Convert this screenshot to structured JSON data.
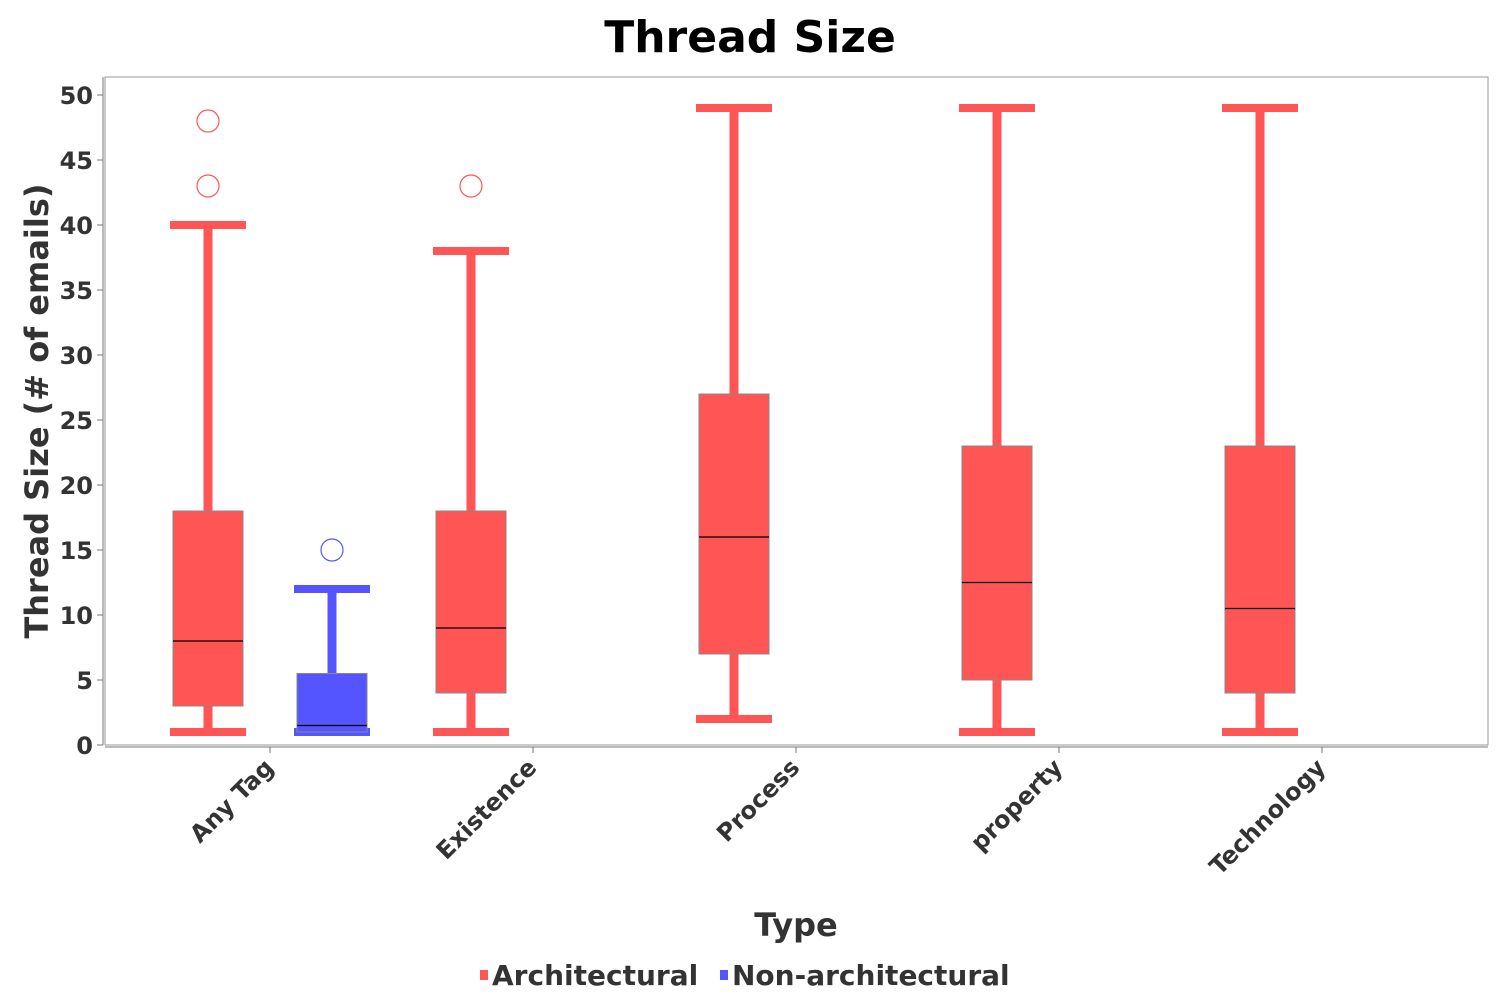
{
  "chart_data": {
    "type": "box",
    "title": "Thread Size",
    "xlabel": "Type",
    "ylabel": "Thread Size (# of emails)",
    "ylim": [
      0,
      51
    ],
    "yticks": [
      0,
      5,
      10,
      15,
      20,
      25,
      30,
      35,
      40,
      45,
      50
    ],
    "categories": [
      "Any Tag",
      "Existence",
      "Process",
      "property",
      "Technology"
    ],
    "legend_position": "bottom",
    "series": [
      {
        "name": "Architectural",
        "color": "#ff5555",
        "boxes": [
          {
            "category": "Any Tag",
            "min": 1,
            "q1": 3,
            "median": 8,
            "q3": 18,
            "max": 40,
            "outliers": [
              43,
              48
            ]
          },
          {
            "category": "Existence",
            "min": 1,
            "q1": 4,
            "median": 9,
            "q3": 18,
            "max": 38,
            "outliers": [
              43
            ]
          },
          {
            "category": "Process",
            "min": 2,
            "q1": 7,
            "median": 16,
            "q3": 27,
            "max": 49,
            "outliers": []
          },
          {
            "category": "property",
            "min": 1,
            "q1": 5,
            "median": 12.5,
            "q3": 23,
            "max": 49,
            "outliers": []
          },
          {
            "category": "Technology",
            "min": 1,
            "q1": 4,
            "median": 10.5,
            "q3": 23,
            "max": 49,
            "outliers": []
          }
        ]
      },
      {
        "name": "Non-architectural",
        "color": "#5555ff",
        "boxes": [
          {
            "category": "Any Tag",
            "min": 1,
            "q1": 1,
            "median": 1.5,
            "q3": 5.5,
            "max": 12,
            "outliers": [
              15
            ]
          }
        ]
      }
    ]
  }
}
